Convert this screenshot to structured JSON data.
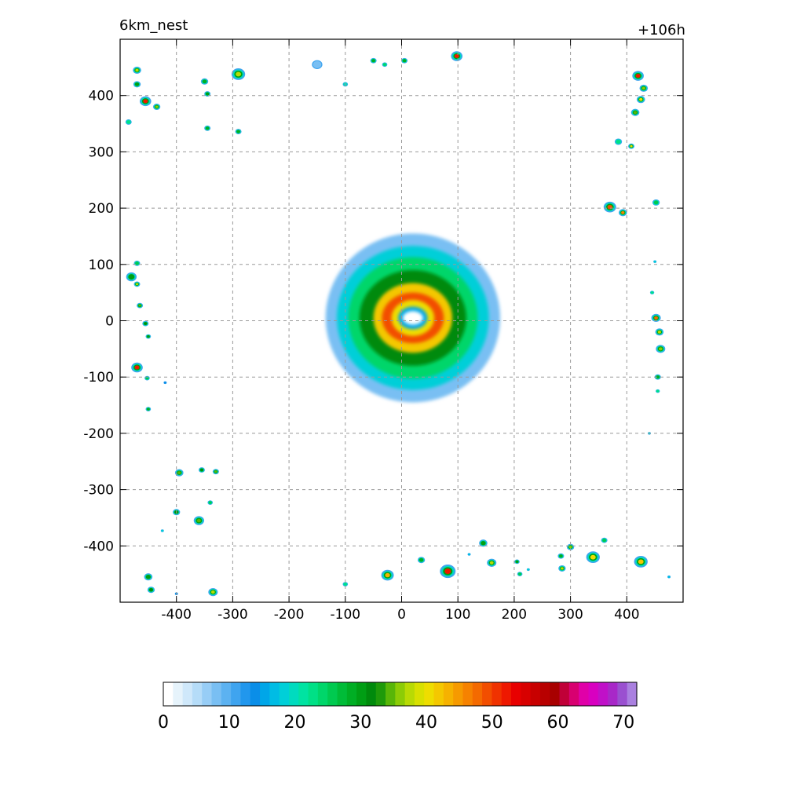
{
  "header": {
    "left": "6km_nest",
    "right": "+106h"
  },
  "chart_data": {
    "type": "heatmap",
    "title_left": "6km_nest",
    "title_right": "+106h",
    "xlim": [
      -500,
      500
    ],
    "ylim": [
      -500,
      500
    ],
    "x_ticks": [
      -400,
      -300,
      -200,
      -100,
      0,
      100,
      200,
      300,
      400
    ],
    "y_ticks": [
      400,
      300,
      200,
      100,
      0,
      -100,
      -200,
      -300,
      -400
    ],
    "x_tick_labels": [
      "-400",
      "-300",
      "-200",
      "-100",
      "0",
      "100",
      "200",
      "300",
      "400"
    ],
    "y_tick_labels": [
      "400",
      "300",
      "200",
      "100",
      "0",
      "-100",
      "-200",
      "-300",
      "-400"
    ],
    "grid": true,
    "colorbar": {
      "range": [
        0,
        72
      ],
      "tick_values": [
        0,
        10,
        20,
        30,
        40,
        50,
        60,
        70
      ],
      "tick_labels": [
        "0",
        "10",
        "20",
        "30",
        "40",
        "50",
        "60",
        "70"
      ],
      "colors": [
        "#ffffff",
        "#e6f3fb",
        "#cfe8fa",
        "#b5dcf8",
        "#97cdf6",
        "#79bff3",
        "#5cb2f1",
        "#3fa4ef",
        "#2197ed",
        "#0a8ee8",
        "#00a6e8",
        "#00bce4",
        "#00cfd8",
        "#00dbbf",
        "#00e3a2",
        "#00e086",
        "#00d66a",
        "#00ca50",
        "#00bc38",
        "#00ae24",
        "#009e14",
        "#008a0c",
        "#1e9a0a",
        "#58b608",
        "#8ccc06",
        "#b8da04",
        "#d8e000",
        "#eedd00",
        "#f4c800",
        "#f6b200",
        "#f69a00",
        "#f68200",
        "#f46a00",
        "#f24e00",
        "#f03200",
        "#ee1800",
        "#e80000",
        "#d80000",
        "#c80000",
        "#b80000",
        "#a80000",
        "#c00038",
        "#d80070",
        "#e000a8",
        "#d800c0",
        "#c010c8",
        "#a828c8",
        "#9a50d0",
        "#aa80e0"
      ]
    },
    "storm_center": [
      20,
      5
    ],
    "storm_rings": [
      {
        "rx": 155,
        "ry": 150,
        "level": 8
      },
      {
        "rx": 135,
        "ry": 128,
        "level": 18
      },
      {
        "rx": 115,
        "ry": 108,
        "level": 24
      },
      {
        "rx": 95,
        "ry": 85,
        "level": 32
      },
      {
        "rx": 70,
        "ry": 62,
        "level": 42
      },
      {
        "rx": 55,
        "ry": 45,
        "level": 50
      },
      {
        "rx": 38,
        "ry": 32,
        "level": 40
      },
      {
        "rx": 26,
        "ry": 20,
        "level": 15
      },
      {
        "rx": 18,
        "ry": 12,
        "level": 0
      }
    ],
    "cells": [
      {
        "x": -470,
        "y": 445,
        "r": 8,
        "level": 38
      },
      {
        "x": -470,
        "y": 420,
        "r": 7,
        "level": 30
      },
      {
        "x": -455,
        "y": 390,
        "r": 11,
        "level": 52
      },
      {
        "x": -435,
        "y": 380,
        "r": 7,
        "level": 36
      },
      {
        "x": -485,
        "y": 353,
        "r": 6,
        "level": 22
      },
      {
        "x": -350,
        "y": 425,
        "r": 7,
        "level": 28
      },
      {
        "x": -345,
        "y": 403,
        "r": 6,
        "level": 30
      },
      {
        "x": -345,
        "y": 342,
        "r": 6,
        "level": 28
      },
      {
        "x": -290,
        "y": 438,
        "r": 13,
        "level": 38
      },
      {
        "x": -290,
        "y": 336,
        "r": 6,
        "level": 28
      },
      {
        "x": -150,
        "y": 455,
        "r": 10,
        "level": 8
      },
      {
        "x": -100,
        "y": 420,
        "r": 5,
        "level": 20
      },
      {
        "x": -50,
        "y": 462,
        "r": 6,
        "level": 28
      },
      {
        "x": -30,
        "y": 455,
        "r": 5,
        "level": 24
      },
      {
        "x": 5,
        "y": 462,
        "r": 6,
        "level": 28
      },
      {
        "x": 98,
        "y": 470,
        "r": 11,
        "level": 52
      },
      {
        "x": 420,
        "y": 435,
        "r": 11,
        "level": 52
      },
      {
        "x": 430,
        "y": 413,
        "r": 8,
        "level": 36
      },
      {
        "x": 425,
        "y": 393,
        "r": 8,
        "level": 40
      },
      {
        "x": 415,
        "y": 370,
        "r": 8,
        "level": 34
      },
      {
        "x": 385,
        "y": 318,
        "r": 7,
        "level": 22
      },
      {
        "x": 408,
        "y": 310,
        "r": 6,
        "level": 40
      },
      {
        "x": 370,
        "y": 202,
        "r": 12,
        "level": 50
      },
      {
        "x": 393,
        "y": 192,
        "r": 8,
        "level": 46
      },
      {
        "x": 452,
        "y": 210,
        "r": 7,
        "level": 26
      },
      {
        "x": 450,
        "y": 105,
        "r": 3,
        "level": 18
      },
      {
        "x": 445,
        "y": 50,
        "r": 4,
        "level": 22
      },
      {
        "x": 452,
        "y": 5,
        "r": 9,
        "level": 48
      },
      {
        "x": 458,
        "y": -20,
        "r": 8,
        "level": 38
      },
      {
        "x": 460,
        "y": -50,
        "r": 9,
        "level": 36
      },
      {
        "x": 455,
        "y": -100,
        "r": 6,
        "level": 28
      },
      {
        "x": 455,
        "y": -125,
        "r": 4,
        "level": 22
      },
      {
        "x": 440,
        "y": -200,
        "r": 3,
        "level": 18
      },
      {
        "x": -470,
        "y": 102,
        "r": 6,
        "level": 26
      },
      {
        "x": -480,
        "y": 78,
        "r": 10,
        "level": 30
      },
      {
        "x": -470,
        "y": 65,
        "r": 6,
        "level": 38
      },
      {
        "x": -465,
        "y": 27,
        "r": 6,
        "level": 34
      },
      {
        "x": -455,
        "y": -5,
        "r": 6,
        "level": 32
      },
      {
        "x": -450,
        "y": -28,
        "r": 5,
        "level": 30
      },
      {
        "x": -470,
        "y": -83,
        "r": 11,
        "level": 52
      },
      {
        "x": -452,
        "y": -102,
        "r": 5,
        "level": 26
      },
      {
        "x": -450,
        "y": -157,
        "r": 5,
        "level": 28
      },
      {
        "x": -420,
        "y": -110,
        "r": 3,
        "level": 14
      },
      {
        "x": -395,
        "y": -270,
        "r": 8,
        "level": 34
      },
      {
        "x": -355,
        "y": -265,
        "r": 6,
        "level": 32
      },
      {
        "x": -330,
        "y": -268,
        "r": 6,
        "level": 34
      },
      {
        "x": -400,
        "y": -340,
        "r": 7,
        "level": 32
      },
      {
        "x": -360,
        "y": -355,
        "r": 10,
        "level": 34
      },
      {
        "x": -340,
        "y": -323,
        "r": 5,
        "level": 26
      },
      {
        "x": -425,
        "y": -373,
        "r": 3,
        "level": 18
      },
      {
        "x": -450,
        "y": -455,
        "r": 8,
        "level": 30
      },
      {
        "x": -445,
        "y": -478,
        "r": 7,
        "level": 32
      },
      {
        "x": -400,
        "y": -485,
        "r": 3,
        "level": 14
      },
      {
        "x": -335,
        "y": -482,
        "r": 9,
        "level": 38
      },
      {
        "x": -100,
        "y": -468,
        "r": 5,
        "level": 22
      },
      {
        "x": -25,
        "y": -452,
        "r": 12,
        "level": 44
      },
      {
        "x": 35,
        "y": -425,
        "r": 7,
        "level": 28
      },
      {
        "x": 82,
        "y": -445,
        "r": 15,
        "level": 52
      },
      {
        "x": 120,
        "y": -415,
        "r": 3,
        "level": 16
      },
      {
        "x": 145,
        "y": -395,
        "r": 8,
        "level": 30
      },
      {
        "x": 160,
        "y": -430,
        "r": 9,
        "level": 38
      },
      {
        "x": 205,
        "y": -428,
        "r": 5,
        "level": 30
      },
      {
        "x": 210,
        "y": -450,
        "r": 5,
        "level": 26
      },
      {
        "x": 283,
        "y": -418,
        "r": 6,
        "level": 28
      },
      {
        "x": 300,
        "y": -402,
        "r": 7,
        "level": 36
      },
      {
        "x": 285,
        "y": -440,
        "r": 7,
        "level": 38
      },
      {
        "x": 340,
        "y": -420,
        "r": 13,
        "level": 40
      },
      {
        "x": 360,
        "y": -390,
        "r": 6,
        "level": 26
      },
      {
        "x": 425,
        "y": -428,
        "r": 13,
        "level": 42
      },
      {
        "x": 475,
        "y": -455,
        "r": 3,
        "level": 16
      },
      {
        "x": 225,
        "y": -442,
        "r": 3,
        "level": 18
      }
    ]
  }
}
